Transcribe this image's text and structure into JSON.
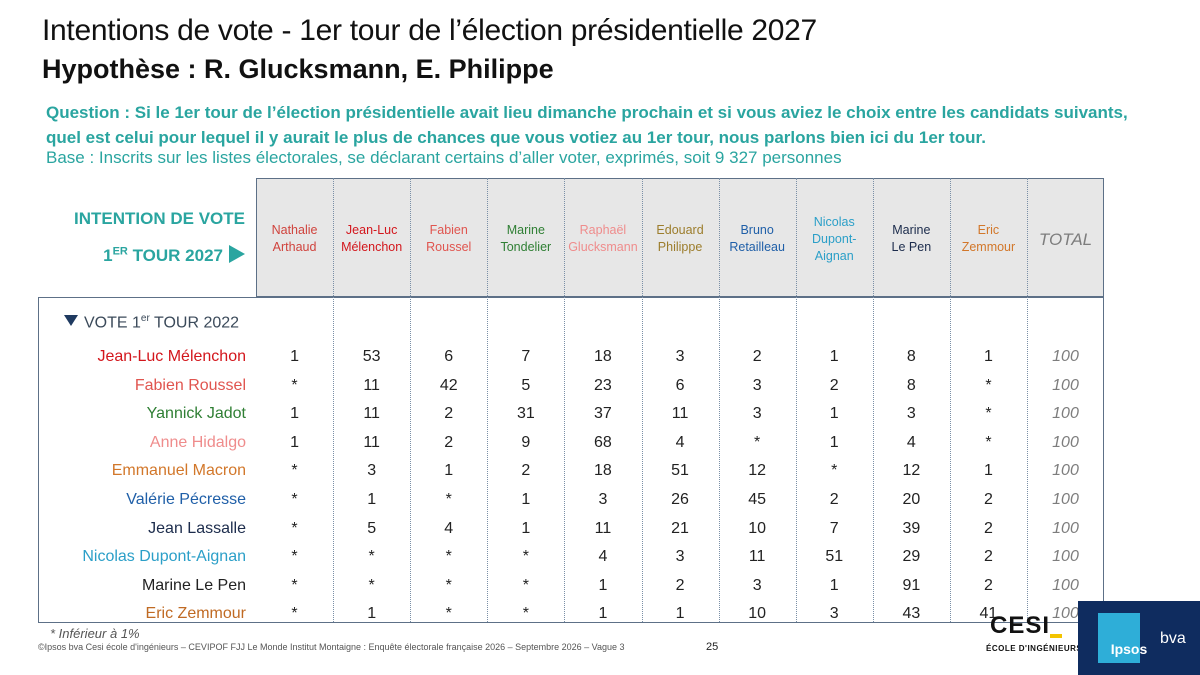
{
  "title": "Intentions de vote - 1er tour de l’élection présidentielle 2027",
  "subtitle": "Hypothèse : R. Glucksmann, E. Philippe",
  "question": "Question : Si le 1er tour de l’élection présidentielle avait lieu dimanche prochain et si vous aviez le choix entre les candidats suivants, quel est celui pour lequel il y aurait le plus de chances que vous votiez au 1er tour, nous parlons bien ici du 1er tour.",
  "base": "Base : Inscrits sur les listes électorales, se déclarant certains d’aller voter, exprimés, soit 9 327 personnes",
  "intent_label_1": "INTENTION DE VOTE",
  "intent_label_2_pre": "1",
  "intent_label_2_sup": "ER",
  "intent_label_2_post": " TOUR 2027",
  "vote2022_pre": "VOTE 1",
  "vote2022_sup": "er",
  "vote2022_post": " TOUR 2022",
  "columns": [
    {
      "name": "Nathalie\nArthaud",
      "color": "#d0433d"
    },
    {
      "name": "Jean-Luc\nMélenchon",
      "color": "#d3161c"
    },
    {
      "name": "Fabien\nRoussel",
      "color": "#e0554f"
    },
    {
      "name": "Marine\nTondelier",
      "color": "#2f7f34"
    },
    {
      "name": "Raphaël\nGlucksmann",
      "color": "#ef8c8c"
    },
    {
      "name": "Edouard\nPhilippe",
      "color": "#9c7d2c"
    },
    {
      "name": "Bruno\nRetailleau",
      "color": "#1f5fa8"
    },
    {
      "name": "Nicolas\nDupont-\nAignan",
      "color": "#2b9fc8"
    },
    {
      "name": "Marine\nLe Pen",
      "color": "#1c2c4c"
    },
    {
      "name": "Eric\nZemmour",
      "color": "#d2772a"
    }
  ],
  "total_label": "TOTAL",
  "rows": [
    {
      "label": "Jean-Luc Mélenchon",
      "color": "#d3161c",
      "values": [
        "1",
        "53",
        "6",
        "7",
        "18",
        "3",
        "2",
        "1",
        "8",
        "1"
      ],
      "total": "100"
    },
    {
      "label": "Fabien Roussel",
      "color": "#e0554f",
      "values": [
        "*",
        "11",
        "42",
        "5",
        "23",
        "6",
        "3",
        "2",
        "8",
        "*"
      ],
      "total": "100"
    },
    {
      "label": "Yannick Jadot",
      "color": "#2f7f34",
      "values": [
        "1",
        "11",
        "2",
        "31",
        "37",
        "11",
        "3",
        "1",
        "3",
        "*"
      ],
      "total": "100"
    },
    {
      "label": "Anne Hidalgo",
      "color": "#ef8c8c",
      "values": [
        "1",
        "11",
        "2",
        "9",
        "68",
        "4",
        "*",
        "1",
        "4",
        "*"
      ],
      "total": "100"
    },
    {
      "label": "Emmanuel Macron",
      "color": "#d2772a",
      "values": [
        "*",
        "3",
        "1",
        "2",
        "18",
        "51",
        "12",
        "*",
        "12",
        "1"
      ],
      "total": "100"
    },
    {
      "label": "Valérie Pécresse",
      "color": "#1f5fa8",
      "values": [
        "*",
        "1",
        "*",
        "1",
        "3",
        "26",
        "45",
        "2",
        "20",
        "2"
      ],
      "total": "100"
    },
    {
      "label": "Jean Lassalle",
      "color": "#1c2c4c",
      "values": [
        "*",
        "5",
        "4",
        "1",
        "11",
        "21",
        "10",
        "7",
        "39",
        "2"
      ],
      "total": "100"
    },
    {
      "label": "Nicolas Dupont-Aignan",
      "color": "#2b9fc8",
      "values": [
        "*",
        "*",
        "*",
        "*",
        "4",
        "3",
        "11",
        "51",
        "29",
        "2"
      ],
      "total": "100"
    },
    {
      "label": "Marine Le Pen",
      "color": "#222222",
      "values": [
        "*",
        "*",
        "*",
        "*",
        "1",
        "2",
        "3",
        "1",
        "91",
        "2"
      ],
      "total": "100"
    },
    {
      "label": "Eric Zemmour",
      "color": "#c06a23",
      "values": [
        "*",
        "1",
        "*",
        "*",
        "1",
        "1",
        "10",
        "3",
        "43",
        "41"
      ],
      "total": "100"
    }
  ],
  "footnote": "* Inférieur à 1%",
  "source": "©Ipsos bva Cesi école d'ingénieurs – CEVIPOF FJJ Le Monde Institut Montaigne : Enquête électorale française 2026 – Septembre 2026 – Vague 3",
  "page_number": "25",
  "logo_cesi": "CESI",
  "logo_cesi_sub": "ÉCOLE D'INGÉNIEURS",
  "logo_ipsos": "Ipsos",
  "logo_bva": "bva"
}
